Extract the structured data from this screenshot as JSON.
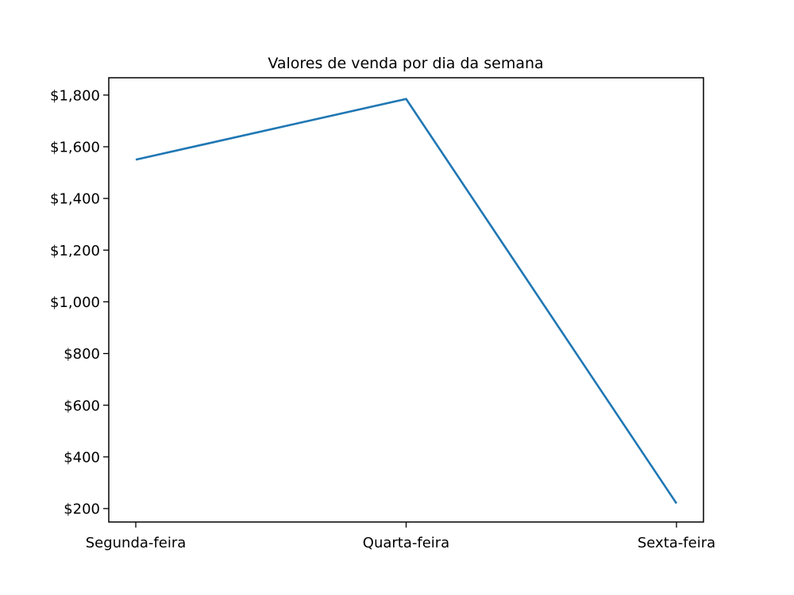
{
  "chart_data": {
    "type": "line",
    "title": "Valores de venda por dia da semana",
    "xlabel": "",
    "ylabel": "",
    "categories": [
      "Segunda-feira",
      "Quarta-feira",
      "Sexta-feira"
    ],
    "series": [
      {
        "values": [
          1550,
          1785,
          220
        ],
        "color": "#1f77b4"
      }
    ],
    "y_ticks": [
      200,
      400,
      600,
      800,
      1000,
      1200,
      1400,
      1600,
      1800
    ],
    "y_tick_labels": [
      "$200",
      "$400",
      "$600",
      "$800",
      "$1,000",
      "$1,200",
      "$1,400",
      "$1,600",
      "$1,800"
    ],
    "ylim": [
      148,
      1867
    ],
    "grid": false,
    "legend": "none"
  }
}
